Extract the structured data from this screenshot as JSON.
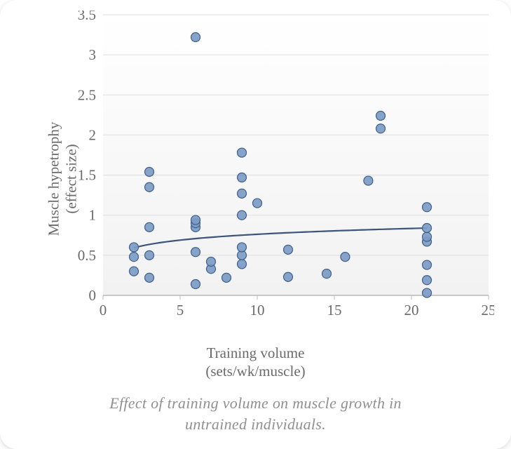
{
  "chart": {
    "type": "scatter",
    "xlabel_line1": "Training volume",
    "xlabel_line2": "(sets/wk/muscle)",
    "ylabel_line1": "Muscle hypetrophy",
    "ylabel_line2": "(effect size)",
    "caption_line1": "Effect of training volume on muscle growth in",
    "caption_line2": "untrained individuals.",
    "xlim": [
      0,
      25
    ],
    "ylim": [
      0,
      3.5
    ],
    "xticks": [
      0,
      5,
      10,
      15,
      20,
      25
    ],
    "yticks": [
      0,
      0.5,
      1,
      1.5,
      2,
      2.5,
      3,
      3.5
    ],
    "plot_background_top": "#ffffff",
    "plot_background_bottom": "#f2f2f2",
    "grid_color": "#dedede",
    "axis_line_color": "#b8b8b8",
    "tick_label_color": "#6a6a6a",
    "label_fontsize": 21,
    "tick_fontsize": 21,
    "caption_fontsize": 22,
    "caption_color": "#909090",
    "marker": {
      "radius": 6.5,
      "fill": "#7c9bc6",
      "stroke": "#3e5f8a",
      "stroke_width": 1.2,
      "opacity": 0.92
    },
    "trend": {
      "color": "#3b5678",
      "width": 2.2,
      "type": "log",
      "x_from": 2,
      "x_to": 21,
      "a": 0.105,
      "b": 0.52
    },
    "points": [
      {
        "x": 2,
        "y": 0.3
      },
      {
        "x": 2,
        "y": 0.48
      },
      {
        "x": 2,
        "y": 0.6
      },
      {
        "x": 3,
        "y": 0.22
      },
      {
        "x": 3,
        "y": 0.5
      },
      {
        "x": 3,
        "y": 0.85
      },
      {
        "x": 3,
        "y": 1.35
      },
      {
        "x": 3,
        "y": 1.54
      },
      {
        "x": 6,
        "y": 0.14
      },
      {
        "x": 6,
        "y": 0.54
      },
      {
        "x": 6,
        "y": 0.85
      },
      {
        "x": 6,
        "y": 0.9
      },
      {
        "x": 6,
        "y": 0.94
      },
      {
        "x": 6,
        "y": 3.22
      },
      {
        "x": 7,
        "y": 0.33
      },
      {
        "x": 7,
        "y": 0.42
      },
      {
        "x": 8,
        "y": 0.22
      },
      {
        "x": 9,
        "y": 0.39
      },
      {
        "x": 9,
        "y": 0.5
      },
      {
        "x": 9,
        "y": 0.6
      },
      {
        "x": 9,
        "y": 1.0
      },
      {
        "x": 9,
        "y": 1.27
      },
      {
        "x": 9,
        "y": 1.47
      },
      {
        "x": 9,
        "y": 1.78
      },
      {
        "x": 10,
        "y": 1.15
      },
      {
        "x": 12,
        "y": 0.23
      },
      {
        "x": 12,
        "y": 0.57
      },
      {
        "x": 14.5,
        "y": 0.27
      },
      {
        "x": 15.7,
        "y": 0.48
      },
      {
        "x": 17.2,
        "y": 1.43
      },
      {
        "x": 18,
        "y": 2.08
      },
      {
        "x": 18,
        "y": 2.24
      },
      {
        "x": 21,
        "y": 0.03
      },
      {
        "x": 21,
        "y": 0.19
      },
      {
        "x": 21,
        "y": 0.38
      },
      {
        "x": 21,
        "y": 0.67
      },
      {
        "x": 21,
        "y": 0.73
      },
      {
        "x": 21,
        "y": 0.84
      },
      {
        "x": 21,
        "y": 1.1
      }
    ]
  }
}
